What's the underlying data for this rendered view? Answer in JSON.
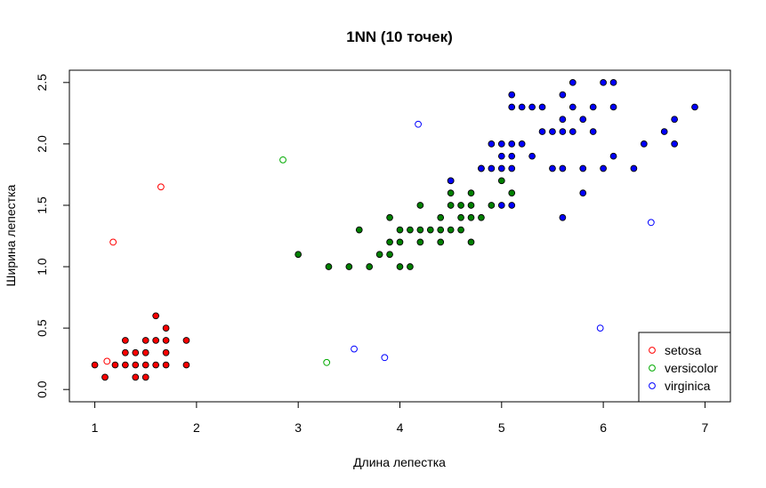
{
  "chart_data": {
    "type": "scatter",
    "title": "1NN (10 точек)",
    "xlabel": "Длина лепестка",
    "ylabel": "Ширина лепестка",
    "xlim": [
      0.75,
      7.25
    ],
    "ylim": [
      -0.1,
      2.6
    ],
    "x_ticks": [
      "1",
      "2",
      "3",
      "4",
      "5",
      "6",
      "7"
    ],
    "y_ticks": [
      "0.0",
      "0.5",
      "1.0",
      "1.5",
      "2.0",
      "2.5"
    ],
    "legend_position": "bottom-right",
    "legend": [
      {
        "label": "setosa",
        "color": "#ff0000"
      },
      {
        "label": "versicolor",
        "color": "#00aa00"
      },
      {
        "label": "virginica",
        "color": "#0000ff"
      }
    ],
    "series": [
      {
        "name": "setosa",
        "style": "filled",
        "color": "#ff0000",
        "points": [
          [
            1.0,
            0.2
          ],
          [
            1.1,
            0.1
          ],
          [
            1.2,
            0.2
          ],
          [
            1.3,
            0.2
          ],
          [
            1.3,
            0.3
          ],
          [
            1.3,
            0.4
          ],
          [
            1.4,
            0.1
          ],
          [
            1.4,
            0.2
          ],
          [
            1.4,
            0.3
          ],
          [
            1.5,
            0.1
          ],
          [
            1.5,
            0.2
          ],
          [
            1.5,
            0.3
          ],
          [
            1.5,
            0.4
          ],
          [
            1.6,
            0.2
          ],
          [
            1.6,
            0.4
          ],
          [
            1.6,
            0.6
          ],
          [
            1.7,
            0.2
          ],
          [
            1.7,
            0.3
          ],
          [
            1.7,
            0.4
          ],
          [
            1.7,
            0.5
          ],
          [
            1.9,
            0.2
          ],
          [
            1.9,
            0.4
          ]
        ]
      },
      {
        "name": "versicolor",
        "style": "filled",
        "color": "#008000",
        "points": [
          [
            3.0,
            1.1
          ],
          [
            3.3,
            1.0
          ],
          [
            3.5,
            1.0
          ],
          [
            3.6,
            1.3
          ],
          [
            3.7,
            1.0
          ],
          [
            3.8,
            1.1
          ],
          [
            3.9,
            1.1
          ],
          [
            3.9,
            1.2
          ],
          [
            3.9,
            1.4
          ],
          [
            4.0,
            1.0
          ],
          [
            4.0,
            1.2
          ],
          [
            4.0,
            1.3
          ],
          [
            4.1,
            1.0
          ],
          [
            4.1,
            1.3
          ],
          [
            4.2,
            1.2
          ],
          [
            4.2,
            1.3
          ],
          [
            4.2,
            1.5
          ],
          [
            4.3,
            1.3
          ],
          [
            4.4,
            1.2
          ],
          [
            4.4,
            1.3
          ],
          [
            4.4,
            1.4
          ],
          [
            4.5,
            1.3
          ],
          [
            4.5,
            1.5
          ],
          [
            4.5,
            1.6
          ],
          [
            4.5,
            1.7
          ],
          [
            4.6,
            1.3
          ],
          [
            4.6,
            1.4
          ],
          [
            4.6,
            1.5
          ],
          [
            4.7,
            1.2
          ],
          [
            4.7,
            1.4
          ],
          [
            4.7,
            1.5
          ],
          [
            4.7,
            1.6
          ],
          [
            4.8,
            1.4
          ],
          [
            4.8,
            1.8
          ],
          [
            4.9,
            1.5
          ],
          [
            5.0,
            1.7
          ],
          [
            5.1,
            1.6
          ]
        ]
      },
      {
        "name": "virginica",
        "style": "filled",
        "color": "#0000ff",
        "points": [
          [
            4.5,
            1.7
          ],
          [
            4.8,
            1.8
          ],
          [
            4.9,
            1.8
          ],
          [
            4.9,
            2.0
          ],
          [
            5.0,
            1.5
          ],
          [
            5.0,
            1.8
          ],
          [
            5.0,
            1.9
          ],
          [
            5.0,
            2.0
          ],
          [
            5.1,
            1.5
          ],
          [
            5.1,
            1.8
          ],
          [
            5.1,
            1.9
          ],
          [
            5.1,
            2.0
          ],
          [
            5.1,
            2.3
          ],
          [
            5.1,
            2.4
          ],
          [
            5.2,
            2.0
          ],
          [
            5.2,
            2.3
          ],
          [
            5.3,
            1.9
          ],
          [
            5.3,
            2.3
          ],
          [
            5.4,
            2.1
          ],
          [
            5.4,
            2.3
          ],
          [
            5.5,
            1.8
          ],
          [
            5.5,
            2.1
          ],
          [
            5.6,
            1.4
          ],
          [
            5.6,
            1.8
          ],
          [
            5.6,
            2.1
          ],
          [
            5.6,
            2.2
          ],
          [
            5.6,
            2.4
          ],
          [
            5.7,
            2.1
          ],
          [
            5.7,
            2.3
          ],
          [
            5.7,
            2.5
          ],
          [
            5.8,
            1.6
          ],
          [
            5.8,
            1.8
          ],
          [
            5.8,
            2.2
          ],
          [
            5.9,
            2.1
          ],
          [
            5.9,
            2.3
          ],
          [
            6.0,
            1.8
          ],
          [
            6.0,
            2.5
          ],
          [
            6.1,
            1.9
          ],
          [
            6.1,
            2.3
          ],
          [
            6.1,
            2.5
          ],
          [
            6.3,
            1.8
          ],
          [
            6.4,
            2.0
          ],
          [
            6.6,
            2.1
          ],
          [
            6.7,
            2.0
          ],
          [
            6.7,
            2.2
          ],
          [
            6.9,
            2.3
          ]
        ]
      },
      {
        "name": "setosa",
        "style": "open",
        "color": "#ff0000",
        "points": [
          [
            1.12,
            0.23
          ],
          [
            1.18,
            1.2
          ],
          [
            1.65,
            1.65
          ]
        ]
      },
      {
        "name": "versicolor",
        "style": "open",
        "color": "#00aa00",
        "points": [
          [
            2.85,
            1.87
          ],
          [
            3.28,
            0.22
          ]
        ]
      },
      {
        "name": "virginica",
        "style": "open",
        "color": "#0000ff",
        "points": [
          [
            3.55,
            0.33
          ],
          [
            3.85,
            0.26
          ],
          [
            4.18,
            2.16
          ],
          [
            5.97,
            0.5
          ],
          [
            6.47,
            1.36
          ]
        ]
      }
    ]
  }
}
